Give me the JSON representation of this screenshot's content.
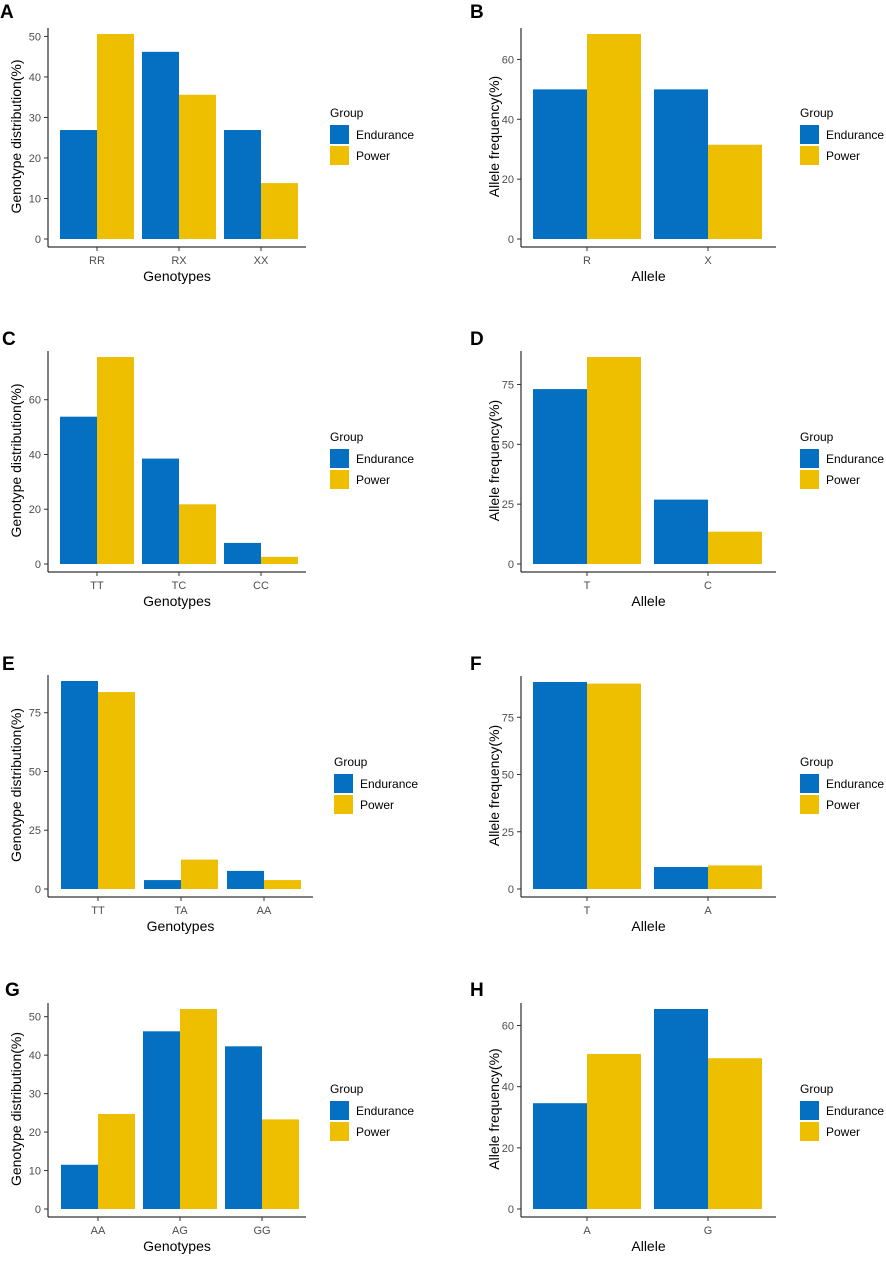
{
  "chart_data": [
    {
      "panel": "A",
      "type": "bar",
      "categories": [
        "RR",
        "RX",
        "XX"
      ],
      "series": [
        {
          "name": "Endurance",
          "values": [
            26.9,
            46.2,
            26.9
          ]
        },
        {
          "name": "Power",
          "values": [
            50.6,
            35.6,
            13.8
          ]
        }
      ],
      "xlabel": "Genotypes",
      "ylabel": "Genotype distribution(%)",
      "ylim": [
        0,
        50.6
      ],
      "yticks": [
        0,
        10,
        20,
        30,
        40,
        50
      ],
      "legend_title": "Group"
    },
    {
      "panel": "B",
      "type": "bar",
      "categories": [
        "R",
        "X"
      ],
      "series": [
        {
          "name": "Endurance",
          "values": [
            50.0,
            50.0
          ]
        },
        {
          "name": "Power",
          "values": [
            68.5,
            31.5
          ]
        }
      ],
      "xlabel": "Allele",
      "ylabel": "Allele frequency(%)",
      "ylim": [
        0,
        68.5
      ],
      "yticks": [
        0,
        20,
        40,
        60
      ],
      "legend_title": "Group"
    },
    {
      "panel": "C",
      "type": "bar",
      "categories": [
        "TT",
        "TC",
        "CC"
      ],
      "series": [
        {
          "name": "Endurance",
          "values": [
            53.8,
            38.5,
            7.7
          ]
        },
        {
          "name": "Power",
          "values": [
            75.6,
            21.8,
            2.6
          ]
        }
      ],
      "xlabel": "Genotypes",
      "ylabel": "Genotype distribution(%)",
      "ylim": [
        0,
        75.6
      ],
      "yticks": [
        0,
        20,
        40,
        60
      ],
      "legend_title": "Group"
    },
    {
      "panel": "D",
      "type": "bar",
      "categories": [
        "T",
        "C"
      ],
      "series": [
        {
          "name": "Endurance",
          "values": [
            73.1,
            26.9
          ]
        },
        {
          "name": "Power",
          "values": [
            86.5,
            13.5
          ]
        }
      ],
      "xlabel": "Allele",
      "ylabel": "Allele frequency(%)",
      "ylim": [
        0,
        86.5
      ],
      "yticks": [
        0,
        25,
        50,
        75
      ],
      "legend_title": "Group"
    },
    {
      "panel": "E",
      "type": "bar",
      "categories": [
        "TT",
        "TA",
        "AA"
      ],
      "series": [
        {
          "name": "Endurance",
          "values": [
            88.5,
            3.8,
            7.7
          ]
        },
        {
          "name": "Power",
          "values": [
            83.8,
            12.5,
            3.8
          ]
        }
      ],
      "xlabel": "Genotypes",
      "ylabel": "Genotype distribution(%)",
      "ylim": [
        0,
        88.5
      ],
      "yticks": [
        0,
        25,
        50,
        75
      ],
      "legend_title": "Group"
    },
    {
      "panel": "F",
      "type": "bar",
      "categories": [
        "T",
        "A"
      ],
      "series": [
        {
          "name": "Endurance",
          "values": [
            90.4,
            9.6
          ]
        },
        {
          "name": "Power",
          "values": [
            89.7,
            10.3
          ]
        }
      ],
      "xlabel": "Allele",
      "ylabel": "Allele frequency(%)",
      "ylim": [
        0,
        90.4
      ],
      "yticks": [
        0,
        25,
        50,
        75
      ],
      "legend_title": "Group"
    },
    {
      "panel": "G",
      "type": "bar",
      "categories": [
        "AA",
        "AG",
        "GG"
      ],
      "series": [
        {
          "name": "Endurance",
          "values": [
            11.5,
            46.2,
            42.3
          ]
        },
        {
          "name": "Power",
          "values": [
            24.7,
            52.0,
            23.3
          ]
        }
      ],
      "xlabel": "Genotypes",
      "ylabel": "Genotype distribution(%)",
      "ylim": [
        0,
        52.0
      ],
      "yticks": [
        0,
        10,
        20,
        30,
        40,
        50
      ],
      "legend_title": "Group"
    },
    {
      "panel": "H",
      "type": "bar",
      "categories": [
        "A",
        "G"
      ],
      "series": [
        {
          "name": "Endurance",
          "values": [
            34.6,
            65.4
          ]
        },
        {
          "name": "Power",
          "values": [
            50.7,
            49.3
          ]
        }
      ],
      "xlabel": "Allele",
      "ylabel": "Allele frequency(%)",
      "ylim": [
        0,
        65.4
      ],
      "yticks": [
        0,
        20,
        40,
        60
      ],
      "legend_title": "Group"
    }
  ],
  "colors": {
    "Endurance": "#0570C1",
    "Power": "#EDBF00",
    "axis": "#000000",
    "tick_text": "#4d4d4d"
  }
}
